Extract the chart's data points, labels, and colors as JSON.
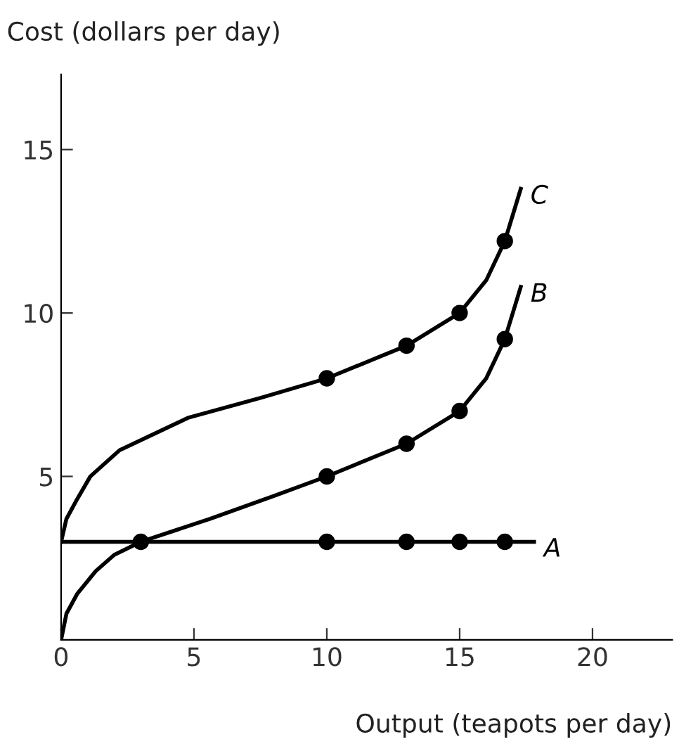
{
  "chart_data": {
    "type": "line",
    "xlabel": "Output (teapots per day)",
    "ylabel": "Cost (dollars per day)",
    "xlim": [
      0,
      23
    ],
    "ylim": [
      0,
      17.3
    ],
    "xticks": [
      0,
      5,
      10,
      15,
      20
    ],
    "yticks": [
      5,
      10,
      15
    ],
    "grid": false,
    "legend": false,
    "series": [
      {
        "name": "A",
        "color": "#000000",
        "marker": "none",
        "x": [
          0,
          17.8
        ],
        "values": [
          3,
          3
        ]
      },
      {
        "name": "B",
        "color": "#000000",
        "marker": "none",
        "x": [
          0,
          0.2,
          0.6,
          1.3,
          2,
          3,
          5.6,
          8,
          10,
          13,
          15,
          16,
          16.7,
          17.3
        ],
        "values": [
          0,
          0.8,
          1.4,
          2.1,
          2.6,
          3,
          3.7,
          4.4,
          5,
          6,
          7,
          8,
          9.2,
          10.8
        ]
      },
      {
        "name": "C",
        "color": "#000000",
        "marker": "none",
        "x": [
          0,
          0.2,
          0.6,
          1.1,
          2.2,
          4.8,
          7.5,
          10,
          13,
          15,
          16,
          16.7,
          17.3
        ],
        "values": [
          3,
          3.7,
          4.3,
          5,
          5.8,
          6.8,
          7.4,
          8,
          9,
          10,
          11,
          12.2,
          13.8
        ]
      },
      {
        "type": "scatter",
        "color": "#000000",
        "marker": "circle",
        "x": [
          3,
          10,
          13,
          15,
          16.7
        ],
        "values": [
          3,
          3,
          3,
          3,
          3
        ]
      },
      {
        "type": "scatter",
        "color": "#000000",
        "marker": "circle",
        "x": [
          10,
          13,
          15,
          16.7
        ],
        "values": [
          5,
          6,
          7,
          9.2
        ]
      },
      {
        "type": "scatter",
        "color": "#000000",
        "marker": "circle",
        "x": [
          10,
          13,
          15,
          16.7
        ],
        "values": [
          8,
          9,
          10,
          12.2
        ]
      }
    ]
  }
}
